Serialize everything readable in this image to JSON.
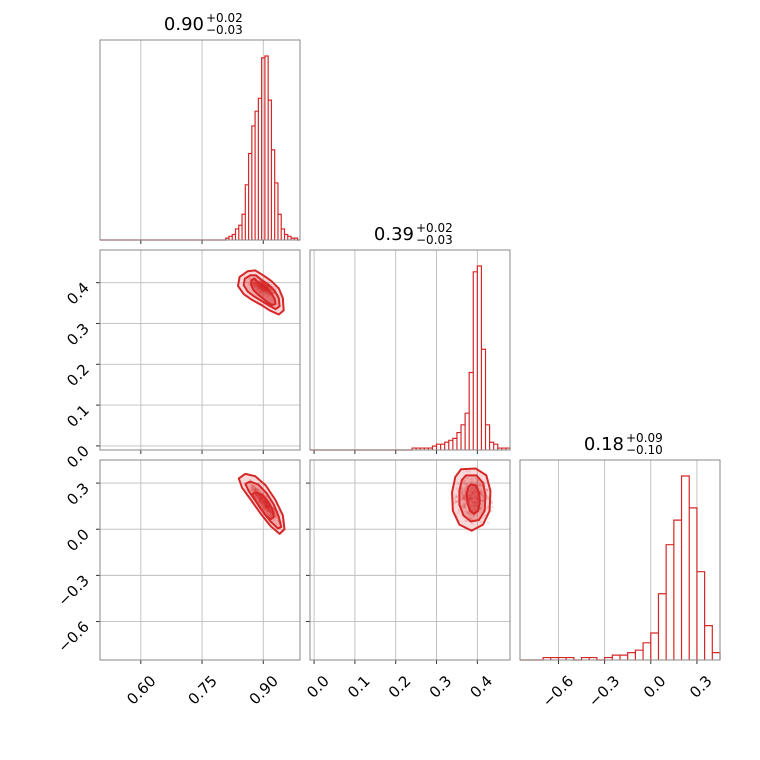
{
  "figure": {
    "background": "#ffffff",
    "accent": "#d62728",
    "grid_color": "#bdbdbd"
  },
  "chart_data": [
    {
      "panel": "marginal-p1",
      "type": "bar",
      "title": {
        "median": "0.90",
        "plus": "+0.02",
        "minus": "−0.03"
      },
      "xlim": [
        0.5,
        0.99
      ],
      "bins": [
        0.808,
        0.816,
        0.824,
        0.832,
        0.84,
        0.848,
        0.856,
        0.864,
        0.872,
        0.88,
        0.888,
        0.896,
        0.904,
        0.912,
        0.92,
        0.928,
        0.936,
        0.944,
        0.952,
        0.96,
        0.968,
        0.976,
        0.984
      ],
      "counts": [
        1,
        2,
        3,
        6,
        8,
        14,
        30,
        47,
        62,
        70,
        77,
        99,
        100,
        76,
        49,
        31,
        14,
        6,
        3,
        2,
        1,
        1
      ],
      "grid": true
    },
    {
      "panel": "marginal-p2",
      "type": "bar",
      "title": {
        "median": "0.39",
        "plus": "+0.02",
        "minus": "−0.03"
      },
      "xlim": [
        -0.01,
        0.48
      ],
      "bins": [
        0.24,
        0.25,
        0.26,
        0.27,
        0.28,
        0.29,
        0.3,
        0.31,
        0.32,
        0.33,
        0.34,
        0.35,
        0.36,
        0.37,
        0.38,
        0.39,
        0.4,
        0.41,
        0.42,
        0.43,
        0.44,
        0.45,
        0.46,
        0.47,
        0.48
      ],
      "counts": [
        1,
        1,
        1,
        1,
        1,
        2,
        3,
        3,
        4,
        5,
        6,
        9,
        13,
        19,
        40,
        92,
        95,
        52,
        13,
        4,
        3,
        1,
        1,
        1
      ],
      "grid": true
    },
    {
      "panel": "marginal-p3",
      "type": "bar",
      "title": {
        "median": "0.18",
        "plus": "+0.09",
        "minus": "−0.10"
      },
      "xlim": [
        -0.85,
        0.45
      ],
      "bins": [
        -0.8,
        -0.75,
        -0.7,
        -0.65,
        -0.6,
        -0.55,
        -0.5,
        -0.45,
        -0.4,
        -0.35,
        -0.3,
        -0.25,
        -0.2,
        -0.15,
        -0.1,
        -0.05,
        0.0,
        0.05,
        0.1,
        0.15,
        0.2,
        0.25,
        0.3,
        0.35,
        0.4,
        0.45
      ],
      "counts": [
        0,
        0,
        1,
        1,
        1,
        1,
        0,
        1,
        1,
        0,
        1,
        2,
        2,
        3,
        4,
        7,
        11,
        27,
        47,
        57,
        75,
        62,
        36,
        14,
        3
      ],
      "grid": true
    },
    {
      "panel": "joint-p1-p2",
      "type": "scatter",
      "xlim": [
        0.5,
        0.99
      ],
      "ylim": [
        -0.01,
        0.48
      ],
      "center": [
        0.9,
        0.39
      ],
      "contours": [
        [
          [
            0.878,
            0.41
          ],
          [
            0.888,
            0.4
          ],
          [
            0.9,
            0.392
          ],
          [
            0.912,
            0.382
          ],
          [
            0.922,
            0.37
          ],
          [
            0.928,
            0.36
          ],
          [
            0.93,
            0.348
          ],
          [
            0.922,
            0.345
          ],
          [
            0.91,
            0.352
          ],
          [
            0.898,
            0.362
          ],
          [
            0.886,
            0.372
          ],
          [
            0.876,
            0.382
          ],
          [
            0.87,
            0.395
          ],
          [
            0.871,
            0.406
          ]
        ],
        [
          [
            0.868,
            0.418
          ],
          [
            0.882,
            0.418
          ],
          [
            0.898,
            0.405
          ],
          [
            0.913,
            0.395
          ],
          [
            0.928,
            0.38
          ],
          [
            0.938,
            0.362
          ],
          [
            0.94,
            0.342
          ],
          [
            0.93,
            0.335
          ],
          [
            0.914,
            0.344
          ],
          [
            0.896,
            0.355
          ],
          [
            0.878,
            0.366
          ],
          [
            0.862,
            0.378
          ],
          [
            0.852,
            0.394
          ],
          [
            0.855,
            0.41
          ]
        ],
        [
          [
            0.862,
            0.428
          ],
          [
            0.88,
            0.43
          ],
          [
            0.9,
            0.418
          ],
          [
            0.92,
            0.404
          ],
          [
            0.938,
            0.386
          ],
          [
            0.948,
            0.362
          ],
          [
            0.95,
            0.332
          ],
          [
            0.938,
            0.322
          ],
          [
            0.916,
            0.332
          ],
          [
            0.894,
            0.346
          ],
          [
            0.872,
            0.358
          ],
          [
            0.852,
            0.372
          ],
          [
            0.838,
            0.392
          ],
          [
            0.842,
            0.414
          ]
        ]
      ],
      "point_spread": [
        0.026,
        0.016
      ],
      "points": 420
    },
    {
      "panel": "joint-p1-p3",
      "type": "scatter",
      "xlim": [
        0.5,
        0.99
      ],
      "ylim": [
        -0.85,
        0.45
      ],
      "center": [
        0.905,
        0.17
      ],
      "contours": [
        [
          [
            0.88,
            0.24
          ],
          [
            0.896,
            0.225
          ],
          [
            0.912,
            0.18
          ],
          [
            0.922,
            0.13
          ],
          [
            0.926,
            0.08
          ],
          [
            0.918,
            0.065
          ],
          [
            0.906,
            0.09
          ],
          [
            0.892,
            0.14
          ],
          [
            0.88,
            0.19
          ],
          [
            0.872,
            0.225
          ]
        ],
        [
          [
            0.868,
            0.31
          ],
          [
            0.888,
            0.29
          ],
          [
            0.908,
            0.235
          ],
          [
            0.926,
            0.16
          ],
          [
            0.938,
            0.08
          ],
          [
            0.944,
            0.015
          ],
          [
            0.936,
            0.005
          ],
          [
            0.918,
            0.05
          ],
          [
            0.9,
            0.11
          ],
          [
            0.882,
            0.18
          ],
          [
            0.864,
            0.25
          ],
          [
            0.856,
            0.295
          ]
        ],
        [
          [
            0.856,
            0.36
          ],
          [
            0.88,
            0.345
          ],
          [
            0.906,
            0.285
          ],
          [
            0.93,
            0.19
          ],
          [
            0.948,
            0.09
          ],
          [
            0.952,
            0.0
          ],
          [
            0.94,
            -0.03
          ],
          [
            0.918,
            0.02
          ],
          [
            0.894,
            0.1
          ],
          [
            0.87,
            0.19
          ],
          [
            0.848,
            0.27
          ],
          [
            0.84,
            0.33
          ]
        ]
      ],
      "point_spread": [
        0.03,
        0.09
      ],
      "points": 420
    },
    {
      "panel": "joint-p2-p3",
      "type": "scatter",
      "xlim": [
        -0.01,
        0.48
      ],
      "ylim": [
        -0.85,
        0.45
      ],
      "center": [
        0.39,
        0.2
      ],
      "contours": [
        [
          [
            0.384,
            0.29
          ],
          [
            0.396,
            0.285
          ],
          [
            0.404,
            0.24
          ],
          [
            0.406,
            0.18
          ],
          [
            0.402,
            0.12
          ],
          [
            0.392,
            0.1
          ],
          [
            0.382,
            0.12
          ],
          [
            0.376,
            0.17
          ],
          [
            0.374,
            0.23
          ],
          [
            0.378,
            0.275
          ]
        ],
        [
          [
            0.372,
            0.35
          ],
          [
            0.398,
            0.35
          ],
          [
            0.414,
            0.3
          ],
          [
            0.42,
            0.22
          ],
          [
            0.418,
            0.12
          ],
          [
            0.404,
            0.06
          ],
          [
            0.384,
            0.05
          ],
          [
            0.366,
            0.09
          ],
          [
            0.356,
            0.16
          ],
          [
            0.356,
            0.25
          ],
          [
            0.362,
            0.32
          ]
        ],
        [
          [
            0.36,
            0.39
          ],
          [
            0.396,
            0.395
          ],
          [
            0.422,
            0.35
          ],
          [
            0.432,
            0.25
          ],
          [
            0.43,
            0.12
          ],
          [
            0.414,
            0.03
          ],
          [
            0.386,
            -0.01
          ],
          [
            0.356,
            0.03
          ],
          [
            0.34,
            0.12
          ],
          [
            0.338,
            0.24
          ],
          [
            0.346,
            0.34
          ]
        ]
      ],
      "point_spread": [
        0.032,
        0.11
      ],
      "points": 420
    }
  ],
  "axes": {
    "x_bottom_p1": {
      "ticks": [
        0.6,
        0.75,
        0.9
      ],
      "labels": [
        "0.60",
        "0.75",
        "0.90"
      ]
    },
    "x_bottom_p2": {
      "ticks": [
        0.0,
        0.1,
        0.2,
        0.3,
        0.4
      ],
      "labels": [
        "0.0",
        "0.1",
        "0.2",
        "0.3",
        "0.4"
      ]
    },
    "x_bottom_p3": {
      "ticks": [
        -0.6,
        -0.3,
        0.0,
        0.3
      ],
      "labels": [
        "−0.6",
        "−0.3",
        "0.0",
        "0.3"
      ]
    },
    "y_left_p2": {
      "ticks": [
        0.0,
        0.1,
        0.2,
        0.3,
        0.4
      ],
      "labels": [
        "0.0",
        "0.1",
        "0.2",
        "0.3",
        "0.4"
      ]
    },
    "y_left_p3": {
      "ticks": [
        -0.6,
        -0.3,
        0.0,
        0.3
      ],
      "labels": [
        "−0.6",
        "−0.3",
        "0.0",
        "0.3"
      ]
    }
  }
}
